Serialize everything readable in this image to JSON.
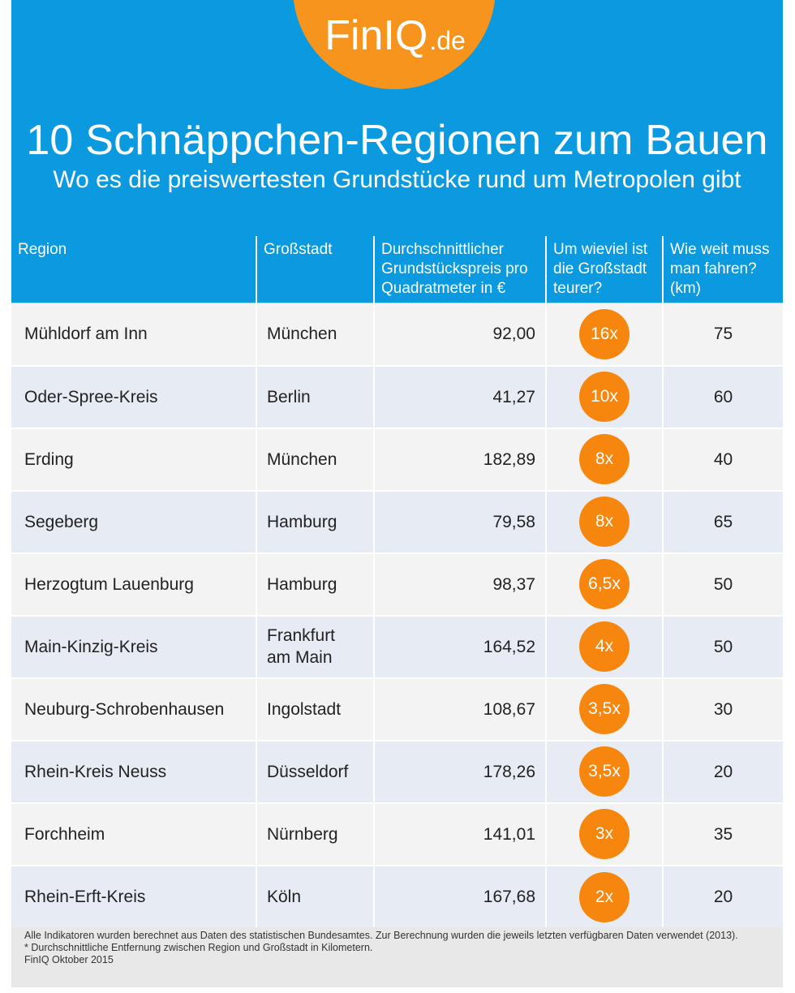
{
  "brand": {
    "name": "FinIQ",
    "tld": ".de",
    "accent_color": "#f7941d",
    "header_color": "#0b9ae0"
  },
  "header": {
    "title": "10 Schnäppchen-Regionen zum Bauen",
    "subtitle": "Wo es die preiswertesten Grundstücke rund um Metropolen gibt"
  },
  "table": {
    "columns": [
      "Region",
      "Großstadt",
      "Durchschnittlicher Grundstückspreis pro Quadratmeter in €",
      "Um wieviel ist die Großstadt teurer?",
      "Wie weit muss man fahren? (km)"
    ],
    "rows": [
      {
        "region": "Mühldorf am Inn",
        "city": "München",
        "price": "92,00",
        "factor": "16x",
        "distance": "75"
      },
      {
        "region": "Oder-Spree-Kreis",
        "city": "Berlin",
        "price": "41,27",
        "factor": "10x",
        "distance": "60"
      },
      {
        "region": "Erding",
        "city": "München",
        "price": "182,89",
        "factor": "8x",
        "distance": "40"
      },
      {
        "region": "Segeberg",
        "city": "Hamburg",
        "price": "79,58",
        "factor": "8x",
        "distance": "65"
      },
      {
        "region": "Herzogtum Lauenburg",
        "city": "Hamburg",
        "price": "98,37",
        "factor": "6,5x",
        "distance": "50"
      },
      {
        "region": "Main-Kinzig-Kreis",
        "city": "Frankfurt am Main",
        "price": "164,52",
        "factor": "4x",
        "distance": "50"
      },
      {
        "region": "Neuburg-Schrobenhausen",
        "city": "Ingolstadt",
        "price": "108,67",
        "factor": "3,5x",
        "distance": "30"
      },
      {
        "region": "Rhein-Kreis Neuss",
        "city": "Düsseldorf",
        "price": "178,26",
        "factor": "3,5x",
        "distance": "20"
      },
      {
        "region": "Forchheim",
        "city": "Nürnberg",
        "price": "141,01",
        "factor": "3x",
        "distance": "35"
      },
      {
        "region": "Rhein-Erft-Kreis",
        "city": "Köln",
        "price": "167,68",
        "factor": "2x",
        "distance": "20"
      }
    ]
  },
  "footer": {
    "note1": "Alle Indikatoren wurden berechnet aus Daten des statistischen Bundesamtes. Zur Berechnung wurden die jeweils letzten verfügbaren Daten verwendet (2013).",
    "note2": "* Durchschnittliche Entfernung zwischen Region und Großstadt in Kilometern.",
    "source": "FinIQ Oktober 2015"
  }
}
